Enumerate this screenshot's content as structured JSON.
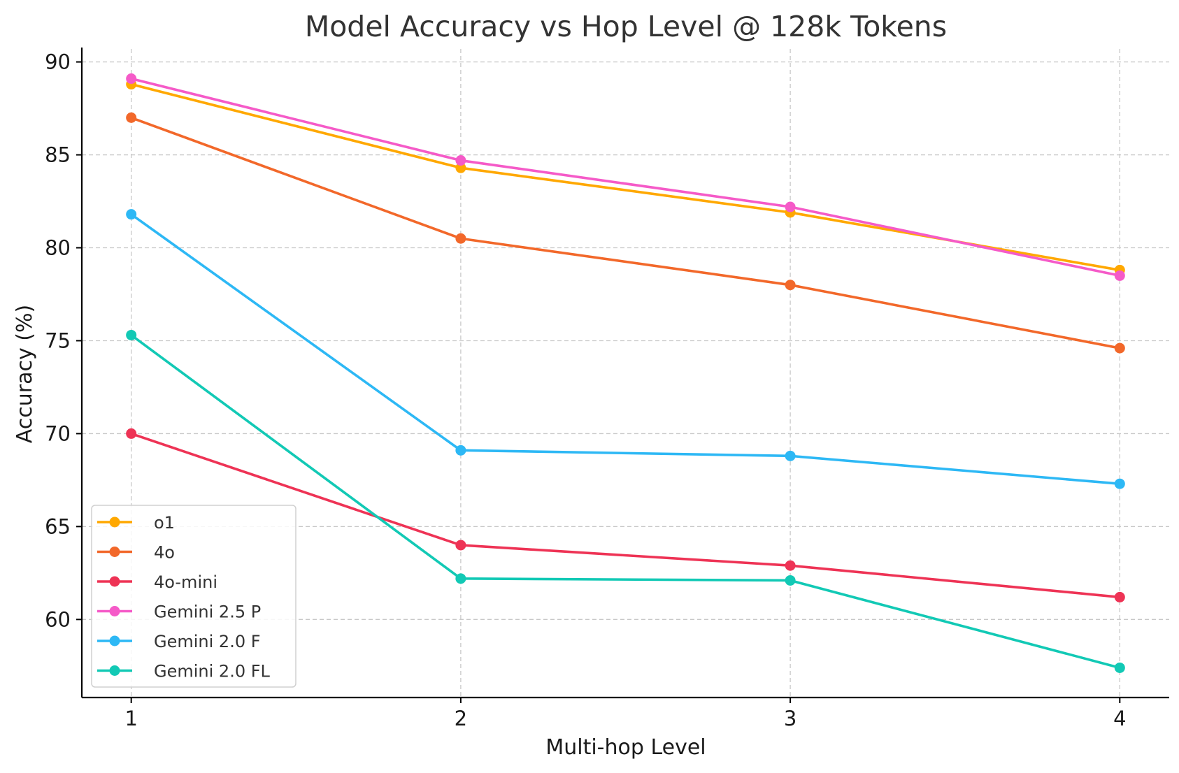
{
  "chart_data": {
    "type": "line",
    "title": "Model Accuracy vs Hop Level @ 128k Tokens",
    "xlabel": "Multi-hop Level",
    "ylabel": "Accuracy (%)",
    "x": [
      1,
      2,
      3,
      4
    ],
    "x_tick_labels": [
      "1",
      "2",
      "3",
      "4"
    ],
    "y_ticks": [
      60,
      65,
      70,
      75,
      80,
      85,
      90
    ],
    "y_tick_labels": [
      "60",
      "65",
      "70",
      "75",
      "80",
      "85",
      "90"
    ],
    "xlim": [
      0.85,
      4.15
    ],
    "ylim": [
      55.8,
      90.7
    ],
    "grid": true,
    "legend_position": "lower-left",
    "series": [
      {
        "name": "o1",
        "color": "#FFA800",
        "values": [
          88.8,
          84.3,
          81.9,
          78.8
        ]
      },
      {
        "name": "4o",
        "color": "#F2682A",
        "values": [
          87.0,
          80.5,
          78.0,
          74.6
        ]
      },
      {
        "name": "4o-mini",
        "color": "#EE3355",
        "values": [
          70.0,
          64.0,
          62.9,
          61.2
        ]
      },
      {
        "name": "Gemini 2.5 P",
        "color": "#F55AC8",
        "values": [
          89.1,
          84.7,
          82.2,
          78.5
        ]
      },
      {
        "name": "Gemini 2.0 F",
        "color": "#2DB8F5",
        "values": [
          81.8,
          69.1,
          68.8,
          67.3
        ]
      },
      {
        "name": "Gemini 2.0 FL",
        "color": "#12C9B5",
        "values": [
          75.3,
          62.2,
          62.1,
          57.4
        ]
      }
    ]
  }
}
